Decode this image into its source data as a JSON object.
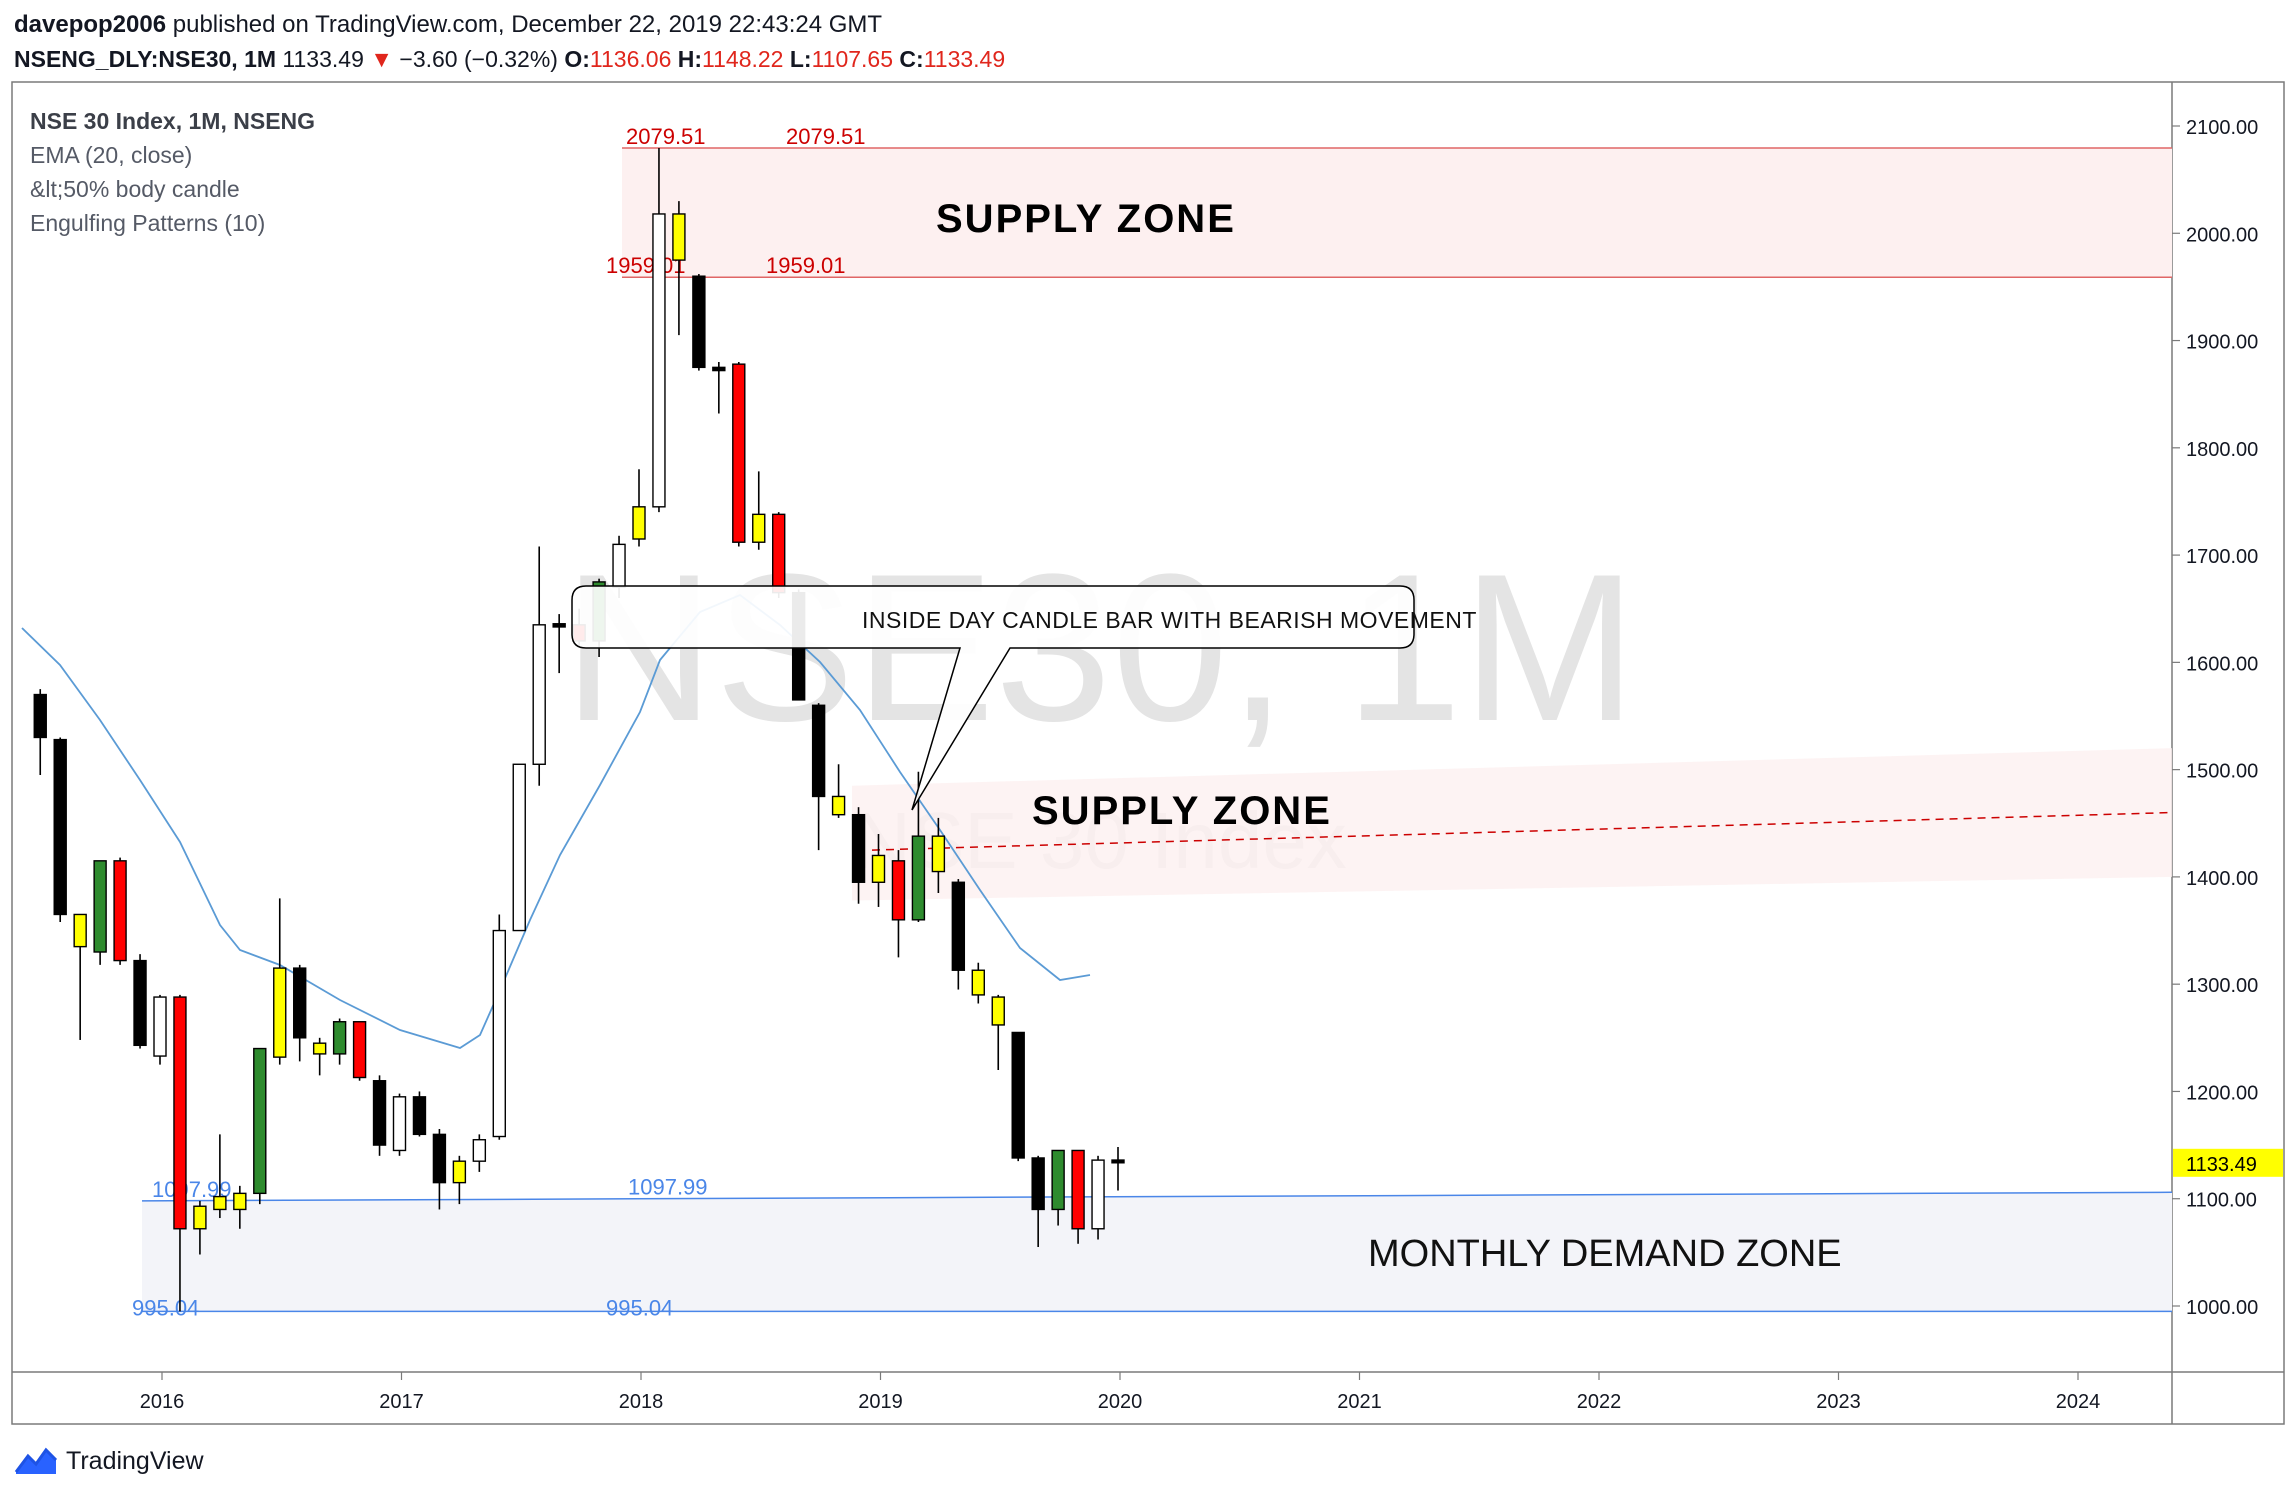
{
  "header": {
    "author": "davepop2006",
    "published": "published on TradingView.com, December 22, 2019 22:43:24 GMT",
    "symbol": "NSENG_DLY:NSE30, 1M",
    "last": "1133.49",
    "change_arrow": "▼",
    "change": "−3.60 (−0.32%)",
    "o_label": "O:",
    "o_value": "1136.06",
    "h_label": "H:",
    "h_value": "1148.22",
    "l_label": "L:",
    "l_value": "1107.65",
    "c_label": "C:",
    "c_value": "1133.49"
  },
  "legend": {
    "title": "NSE 30 Index, 1M, NSENG",
    "items": [
      "EMA (20, close)",
      "&lt;50% body candle",
      "Engulfing Patterns (10)"
    ]
  },
  "watermark": {
    "big": "NSE30, 1M",
    "small": "NSE 30 Index"
  },
  "footer": {
    "brand": "TradingView",
    "logo_icon": "tradingview-logo-icon"
  },
  "colors": {
    "bull": "#ffffff",
    "bear": "#000000",
    "small_body": "#ffff00",
    "engulf_bull": "#2e8b2e",
    "engulf_bear": "#ff0000",
    "ema": "#5b9bd5",
    "supply_line": "#e06666",
    "supply_fill": "#fdf0f0",
    "demand_line": "#4a86e8",
    "demand_fill": "#f3f4f9",
    "price_tag": "#ffff00",
    "supply_text": "#000000",
    "level_red": "#cc0000",
    "level_blue": "#4a86e8"
  },
  "chart_data": {
    "type": "candlestick",
    "timeframe": "1M",
    "ylim": [
      930,
      2150
    ],
    "yticks": [
      1000,
      1100,
      1200,
      1300,
      1400,
      1500,
      1600,
      1700,
      1800,
      1900,
      2000,
      2100
    ],
    "ytick_labels": [
      "1000.00",
      "1100.00",
      "1200.00",
      "1300.00",
      "1400.00",
      "1500.00",
      "1600.00",
      "1700.00",
      "1800.00",
      "1900.00",
      "2000.00",
      "2100.00"
    ],
    "xticks": [
      "2016",
      "2017",
      "2018",
      "2019",
      "2020",
      "2021",
      "2022",
      "2023",
      "2024"
    ],
    "last_price": 1133.49,
    "last_price_label": "1133.49",
    "candles": [
      {
        "t": "2015-07",
        "o": 1570,
        "h": 1575,
        "l": 1495,
        "c": 1530,
        "col": "bear"
      },
      {
        "t": "2015-08",
        "o": 1528,
        "h": 1530,
        "l": 1358,
        "c": 1365,
        "col": "bear"
      },
      {
        "t": "2015-09",
        "o": 1335,
        "h": 1365,
        "l": 1248,
        "c": 1365,
        "col": "small"
      },
      {
        "t": "2015-10",
        "o": 1330,
        "h": 1415,
        "l": 1318,
        "c": 1415,
        "col": "green"
      },
      {
        "t": "2015-11",
        "o": 1415,
        "h": 1418,
        "l": 1318,
        "c": 1322,
        "col": "red"
      },
      {
        "t": "2015-12",
        "o": 1322,
        "h": 1328,
        "l": 1240,
        "c": 1243,
        "col": "bear"
      },
      {
        "t": "2016-01",
        "o": 1233,
        "h": 1290,
        "l": 1225,
        "c": 1288,
        "col": "bull"
      },
      {
        "t": "2016-02",
        "o": 1288,
        "h": 1290,
        "l": 995,
        "c": 1072,
        "col": "red"
      },
      {
        "t": "2016-03",
        "o": 1072,
        "h": 1098,
        "l": 1048,
        "c": 1093,
        "col": "small"
      },
      {
        "t": "2016-04",
        "o": 1090,
        "h": 1160,
        "l": 1082,
        "c": 1102,
        "col": "small"
      },
      {
        "t": "2016-05",
        "o": 1090,
        "h": 1112,
        "l": 1072,
        "c": 1105,
        "col": "small"
      },
      {
        "t": "2016-06",
        "o": 1105,
        "h": 1240,
        "l": 1095,
        "c": 1240,
        "col": "green"
      },
      {
        "t": "2016-07",
        "o": 1232,
        "h": 1380,
        "l": 1225,
        "c": 1315,
        "col": "small"
      },
      {
        "t": "2016-08",
        "o": 1315,
        "h": 1318,
        "l": 1228,
        "c": 1250,
        "col": "bear"
      },
      {
        "t": "2016-09",
        "o": 1245,
        "h": 1250,
        "l": 1215,
        "c": 1235,
        "col": "small"
      },
      {
        "t": "2016-10",
        "o": 1235,
        "h": 1268,
        "l": 1225,
        "c": 1265,
        "col": "green"
      },
      {
        "t": "2016-11",
        "o": 1265,
        "h": 1265,
        "l": 1210,
        "c": 1213,
        "col": "red"
      },
      {
        "t": "2016-12",
        "o": 1210,
        "h": 1215,
        "l": 1140,
        "c": 1150,
        "col": "bear"
      },
      {
        "t": "2017-01",
        "o": 1145,
        "h": 1198,
        "l": 1140,
        "c": 1195,
        "col": "bull"
      },
      {
        "t": "2017-02",
        "o": 1195,
        "h": 1200,
        "l": 1158,
        "c": 1160,
        "col": "bear"
      },
      {
        "t": "2017-03",
        "o": 1160,
        "h": 1165,
        "l": 1090,
        "c": 1115,
        "col": "bear"
      },
      {
        "t": "2017-04",
        "o": 1115,
        "h": 1140,
        "l": 1095,
        "c": 1135,
        "col": "small"
      },
      {
        "t": "2017-05",
        "o": 1135,
        "h": 1160,
        "l": 1125,
        "c": 1155,
        "col": "bull"
      },
      {
        "t": "2017-06",
        "o": 1158,
        "h": 1365,
        "l": 1155,
        "c": 1350,
        "col": "bull"
      },
      {
        "t": "2017-07",
        "o": 1350,
        "h": 1505,
        "l": 1350,
        "c": 1505,
        "col": "bull"
      },
      {
        "t": "2017-08",
        "o": 1505,
        "h": 1708,
        "l": 1485,
        "c": 1635,
        "col": "bull"
      },
      {
        "t": "2017-09",
        "o": 1636,
        "h": 1645,
        "l": 1590,
        "c": 1633,
        "col": "bear"
      },
      {
        "t": "2017-10",
        "o": 1635,
        "h": 1650,
        "l": 1615,
        "c": 1620,
        "col": "red"
      },
      {
        "t": "2017-11",
        "o": 1620,
        "h": 1678,
        "l": 1605,
        "c": 1675,
        "col": "green"
      },
      {
        "t": "2017-12",
        "o": 1670,
        "h": 1718,
        "l": 1660,
        "c": 1710,
        "col": "bull"
      },
      {
        "t": "2018-01",
        "o": 1715,
        "h": 1780,
        "l": 1708,
        "c": 1745,
        "col": "small"
      },
      {
        "t": "2018-02",
        "o": 1745,
        "h": 2079.51,
        "l": 1740,
        "c": 2018,
        "col": "bull"
      },
      {
        "t": "2018-03",
        "o": 2018,
        "h": 2030,
        "l": 1905,
        "c": 1975,
        "col": "small"
      },
      {
        "t": "2018-04",
        "o": 1960,
        "h": 1962,
        "l": 1872,
        "c": 1875,
        "col": "bear"
      },
      {
        "t": "2018-05",
        "o": 1875,
        "h": 1880,
        "l": 1832,
        "c": 1872,
        "col": "bear"
      },
      {
        "t": "2018-06",
        "o": 1878,
        "h": 1880,
        "l": 1708,
        "c": 1712,
        "col": "red"
      },
      {
        "t": "2018-07",
        "o": 1712,
        "h": 1778,
        "l": 1705,
        "c": 1738,
        "col": "small"
      },
      {
        "t": "2018-08",
        "o": 1738,
        "h": 1740,
        "l": 1660,
        "c": 1665,
        "col": "red"
      },
      {
        "t": "2018-09",
        "o": 1665,
        "h": 1668,
        "l": 1565,
        "c": 1565,
        "col": "bear"
      },
      {
        "t": "2018-10",
        "o": 1560,
        "h": 1562,
        "l": 1425,
        "c": 1475,
        "col": "bear"
      },
      {
        "t": "2018-11",
        "o": 1475,
        "h": 1505,
        "l": 1455,
        "c": 1458,
        "col": "small"
      },
      {
        "t": "2018-12",
        "o": 1458,
        "h": 1465,
        "l": 1375,
        "c": 1395,
        "col": "bear"
      },
      {
        "t": "2019-01",
        "o": 1395,
        "h": 1440,
        "l": 1372,
        "c": 1420,
        "col": "small"
      },
      {
        "t": "2019-02",
        "o": 1415,
        "h": 1425,
        "l": 1325,
        "c": 1360,
        "col": "red"
      },
      {
        "t": "2019-03",
        "o": 1360,
        "h": 1498,
        "l": 1358,
        "c": 1438,
        "col": "green"
      },
      {
        "t": "2019-04",
        "o": 1438,
        "h": 1455,
        "l": 1385,
        "c": 1405,
        "col": "small"
      },
      {
        "t": "2019-05",
        "o": 1395,
        "h": 1398,
        "l": 1295,
        "c": 1313,
        "col": "bear"
      },
      {
        "t": "2019-06",
        "o": 1313,
        "h": 1320,
        "l": 1282,
        "c": 1290,
        "col": "small"
      },
      {
        "t": "2019-07",
        "o": 1288,
        "h": 1290,
        "l": 1220,
        "c": 1262,
        "col": "small"
      },
      {
        "t": "2019-08",
        "o": 1255,
        "h": 1255,
        "l": 1135,
        "c": 1138,
        "col": "bear"
      },
      {
        "t": "2019-09",
        "o": 1138,
        "h": 1140,
        "l": 1055,
        "c": 1090,
        "col": "bear"
      },
      {
        "t": "2019-10",
        "o": 1090,
        "h": 1145,
        "l": 1075,
        "c": 1145,
        "col": "green"
      },
      {
        "t": "2019-11",
        "o": 1145,
        "h": 1145,
        "l": 1058,
        "c": 1072,
        "col": "red"
      },
      {
        "t": "2019-12",
        "o": 1072,
        "h": 1140,
        "l": 1062,
        "c": 1136,
        "col": "bull"
      },
      {
        "t": "2020-01",
        "o": 1136.06,
        "h": 1148.22,
        "l": 1107.65,
        "c": 1133.49,
        "col": "bear"
      }
    ],
    "ema": [
      1630,
      1600,
      1565,
      1530,
      1495,
      1460,
      1430,
      1395,
      1365,
      1350,
      1340,
      1330,
      1320,
      1305,
      1290,
      1275,
      1258,
      1245,
      1240,
      1238,
      1260,
      1300,
      1360,
      1410,
      1460,
      1520,
      1560,
      1600,
      1620,
      1635,
      1630,
      1590,
      1560,
      1530,
      1505,
      1475,
      1440,
      1400,
      1360,
      1320,
      1305
    ],
    "ema_start": "2017-03",
    "ema_note": "EMA drawn with index offset (see script)",
    "supply_zone_1": {
      "high": 2079.51,
      "low": 1959.01,
      "label": "SUPPLY ZONE",
      "high_label": "2079.51",
      "low_label": "1959.01"
    },
    "supply_zone_2": {
      "label": "SUPPLY ZONE"
    },
    "demand_zone": {
      "high": 1097.99,
      "low": 995.04,
      "label": "MONTHLY DEMAND ZONE",
      "high_label": "1097.99",
      "low_label": "995.04"
    },
    "annotation": "INSIDE DAY CANDLE BAR WITH BEARISH MOVEMENT"
  }
}
